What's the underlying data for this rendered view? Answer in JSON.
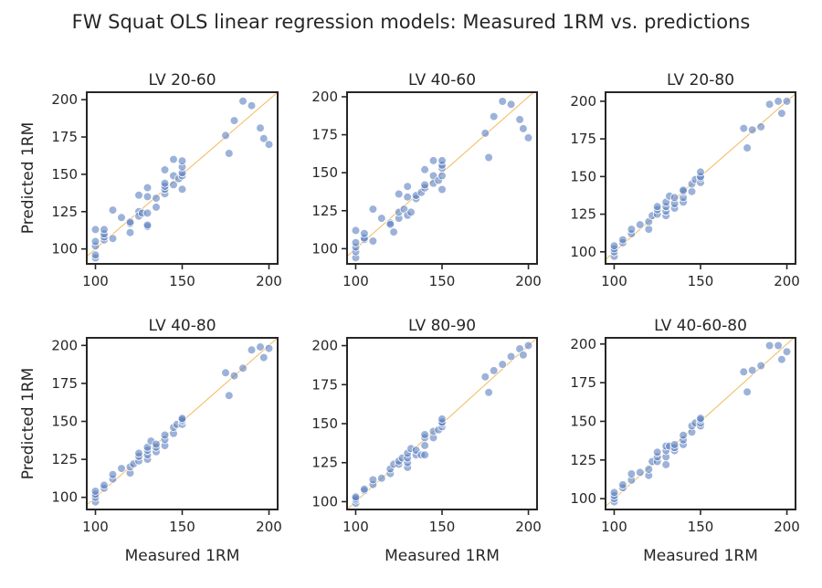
{
  "figure": {
    "title": "FW Squat OLS linear regression models: Measured 1RM vs. predictions",
    "xlabel": "Measured 1RM",
    "ylabel": "Predicted 1RM",
    "point_color": "#5a7fbf",
    "point_edge_color": "#ffffff",
    "identity_line_color": "#f2b24a",
    "axis_color": "#262626"
  },
  "chart_data": [
    {
      "type": "scatter",
      "title": "LV 20-60",
      "xlabel": "",
      "ylabel": "Predicted 1RM",
      "xlim": [
        95,
        205
      ],
      "ylim": [
        90,
        205
      ],
      "xticks": [
        100,
        150,
        200
      ],
      "yticks": [
        100,
        125,
        150,
        175,
        200
      ],
      "identity_line": true,
      "points": [
        [
          100,
          94
        ],
        [
          100,
          96
        ],
        [
          100,
          102
        ],
        [
          100,
          105
        ],
        [
          100,
          113
        ],
        [
          105,
          106
        ],
        [
          105,
          108
        ],
        [
          105,
          110
        ],
        [
          105,
          113
        ],
        [
          110,
          107
        ],
        [
          110,
          126
        ],
        [
          115,
          121
        ],
        [
          120,
          111
        ],
        [
          120,
          117
        ],
        [
          120,
          118
        ],
        [
          125,
          125
        ],
        [
          125,
          136
        ],
        [
          125,
          122
        ],
        [
          127,
          124
        ],
        [
          130,
          115
        ],
        [
          130,
          116
        ],
        [
          130,
          124
        ],
        [
          130,
          135
        ],
        [
          130,
          141
        ],
        [
          135,
          128
        ],
        [
          135,
          134
        ],
        [
          140,
          137
        ],
        [
          140,
          140
        ],
        [
          140,
          142
        ],
        [
          140,
          144
        ],
        [
          140,
          153
        ],
        [
          145,
          143
        ],
        [
          145,
          149
        ],
        [
          145,
          160
        ],
        [
          148,
          147
        ],
        [
          150,
          140
        ],
        [
          150,
          149
        ],
        [
          150,
          151
        ],
        [
          150,
          155
        ],
        [
          150,
          159
        ],
        [
          175,
          176
        ],
        [
          177,
          164
        ],
        [
          180,
          186
        ],
        [
          185,
          199
        ],
        [
          190,
          196
        ],
        [
          195,
          181
        ],
        [
          197,
          174
        ],
        [
          200,
          170
        ]
      ]
    },
    {
      "type": "scatter",
      "title": "LV 40-60",
      "xlabel": "",
      "ylabel": "",
      "xlim": [
        95,
        205
      ],
      "ylim": [
        90,
        203
      ],
      "xticks": [
        100,
        150,
        200
      ],
      "yticks": [
        100,
        125,
        150,
        175,
        200
      ],
      "identity_line": true,
      "points": [
        [
          100,
          94
        ],
        [
          100,
          98
        ],
        [
          100,
          101
        ],
        [
          100,
          104
        ],
        [
          100,
          112
        ],
        [
          105,
          106
        ],
        [
          105,
          107
        ],
        [
          105,
          110
        ],
        [
          110,
          105
        ],
        [
          110,
          126
        ],
        [
          115,
          120
        ],
        [
          120,
          117
        ],
        [
          120,
          116
        ],
        [
          122,
          111
        ],
        [
          125,
          120
        ],
        [
          125,
          124
        ],
        [
          125,
          136
        ],
        [
          128,
          126
        ],
        [
          130,
          122
        ],
        [
          130,
          134
        ],
        [
          130,
          141
        ],
        [
          132,
          124
        ],
        [
          135,
          133
        ],
        [
          135,
          135
        ],
        [
          138,
          137
        ],
        [
          140,
          140
        ],
        [
          140,
          142
        ],
        [
          140,
          152
        ],
        [
          145,
          143
        ],
        [
          145,
          148
        ],
        [
          145,
          158
        ],
        [
          148,
          145
        ],
        [
          150,
          139
        ],
        [
          150,
          148
        ],
        [
          150,
          153
        ],
        [
          150,
          155
        ],
        [
          150,
          158
        ],
        [
          175,
          176
        ],
        [
          177,
          160
        ],
        [
          180,
          187
        ],
        [
          185,
          197
        ],
        [
          190,
          195
        ],
        [
          195,
          185
        ],
        [
          197,
          179
        ],
        [
          200,
          173
        ]
      ]
    },
    {
      "type": "scatter",
      "title": "LV 20-80",
      "xlabel": "",
      "ylabel": "",
      "xlim": [
        95,
        205
      ],
      "ylim": [
        92,
        206
      ],
      "xticks": [
        100,
        150,
        200
      ],
      "yticks": [
        100,
        125,
        150,
        175,
        200
      ],
      "identity_line": true,
      "points": [
        [
          100,
          97
        ],
        [
          100,
          100
        ],
        [
          100,
          102
        ],
        [
          100,
          104
        ],
        [
          105,
          106
        ],
        [
          105,
          108
        ],
        [
          110,
          112
        ],
        [
          110,
          115
        ],
        [
          115,
          118
        ],
        [
          120,
          115
        ],
        [
          120,
          120
        ],
        [
          122,
          124
        ],
        [
          125,
          125
        ],
        [
          125,
          128
        ],
        [
          125,
          130
        ],
        [
          130,
          124
        ],
        [
          130,
          127
        ],
        [
          130,
          130
        ],
        [
          130,
          133
        ],
        [
          132,
          137
        ],
        [
          135,
          129
        ],
        [
          135,
          132
        ],
        [
          135,
          136
        ],
        [
          140,
          133
        ],
        [
          140,
          136
        ],
        [
          140,
          140
        ],
        [
          140,
          141
        ],
        [
          145,
          140
        ],
        [
          145,
          145
        ],
        [
          147,
          148
        ],
        [
          150,
          146
        ],
        [
          150,
          149
        ],
        [
          150,
          150
        ],
        [
          150,
          153
        ],
        [
          175,
          182
        ],
        [
          177,
          169
        ],
        [
          180,
          181
        ],
        [
          185,
          183
        ],
        [
          190,
          198
        ],
        [
          195,
          200
        ],
        [
          197,
          192
        ],
        [
          200,
          200
        ]
      ]
    },
    {
      "type": "scatter",
      "title": "LV 40-80",
      "xlabel": "Measured 1RM",
      "ylabel": "Predicted 1RM",
      "xlim": [
        95,
        205
      ],
      "ylim": [
        92,
        205
      ],
      "xticks": [
        100,
        150,
        200
      ],
      "yticks": [
        100,
        125,
        150,
        175,
        200
      ],
      "identity_line": true,
      "points": [
        [
          100,
          97
        ],
        [
          100,
          100
        ],
        [
          100,
          102
        ],
        [
          100,
          104
        ],
        [
          105,
          106
        ],
        [
          105,
          108
        ],
        [
          110,
          112
        ],
        [
          110,
          115
        ],
        [
          115,
          119
        ],
        [
          120,
          116
        ],
        [
          120,
          120
        ],
        [
          122,
          122
        ],
        [
          125,
          124
        ],
        [
          125,
          127
        ],
        [
          125,
          129
        ],
        [
          130,
          125
        ],
        [
          130,
          128
        ],
        [
          130,
          131
        ],
        [
          130,
          133
        ],
        [
          132,
          137
        ],
        [
          135,
          130
        ],
        [
          135,
          133
        ],
        [
          135,
          135
        ],
        [
          140,
          134
        ],
        [
          140,
          138
        ],
        [
          140,
          141
        ],
        [
          145,
          142
        ],
        [
          145,
          146
        ],
        [
          147,
          148
        ],
        [
          150,
          148
        ],
        [
          150,
          150
        ],
        [
          150,
          151
        ],
        [
          150,
          152
        ],
        [
          175,
          182
        ],
        [
          177,
          167
        ],
        [
          180,
          180
        ],
        [
          185,
          185
        ],
        [
          190,
          197
        ],
        [
          195,
          199
        ],
        [
          197,
          192
        ],
        [
          200,
          198
        ]
      ]
    },
    {
      "type": "scatter",
      "title": "LV 80-90",
      "xlabel": "Measured 1RM",
      "ylabel": "",
      "xlim": [
        95,
        205
      ],
      "ylim": [
        95,
        205
      ],
      "xticks": [
        100,
        150,
        200
      ],
      "yticks": [
        100,
        125,
        150,
        175,
        200
      ],
      "identity_line": true,
      "points": [
        [
          100,
          99
        ],
        [
          100,
          101
        ],
        [
          100,
          102
        ],
        [
          100,
          103
        ],
        [
          105,
          107
        ],
        [
          105,
          108
        ],
        [
          110,
          111
        ],
        [
          110,
          114
        ],
        [
          115,
          115
        ],
        [
          120,
          118
        ],
        [
          120,
          121
        ],
        [
          122,
          124
        ],
        [
          125,
          124
        ],
        [
          125,
          126
        ],
        [
          127,
          128
        ],
        [
          130,
          122
        ],
        [
          130,
          125
        ],
        [
          130,
          128
        ],
        [
          130,
          131
        ],
        [
          132,
          134
        ],
        [
          135,
          130
        ],
        [
          135,
          133
        ],
        [
          138,
          130
        ],
        [
          140,
          130
        ],
        [
          140,
          136
        ],
        [
          140,
          141
        ],
        [
          140,
          143
        ],
        [
          145,
          141
        ],
        [
          145,
          145
        ],
        [
          148,
          146
        ],
        [
          150,
          148
        ],
        [
          150,
          150
        ],
        [
          150,
          151
        ],
        [
          150,
          153
        ],
        [
          175,
          180
        ],
        [
          177,
          170
        ],
        [
          180,
          184
        ],
        [
          185,
          188
        ],
        [
          190,
          193
        ],
        [
          195,
          198
        ],
        [
          197,
          194
        ],
        [
          200,
          200
        ]
      ]
    },
    {
      "type": "scatter",
      "title": "LV 40-60-80",
      "xlabel": "Measured 1RM",
      "ylabel": "",
      "xlim": [
        95,
        205
      ],
      "ylim": [
        93,
        204
      ],
      "xticks": [
        100,
        150,
        200
      ],
      "yticks": [
        100,
        125,
        150,
        175,
        200
      ],
      "identity_line": true,
      "points": [
        [
          100,
          98
        ],
        [
          100,
          100
        ],
        [
          100,
          102
        ],
        [
          100,
          104
        ],
        [
          105,
          107
        ],
        [
          105,
          109
        ],
        [
          110,
          112
        ],
        [
          110,
          116
        ],
        [
          115,
          117
        ],
        [
          120,
          115
        ],
        [
          120,
          119
        ],
        [
          122,
          124
        ],
        [
          125,
          124
        ],
        [
          125,
          127
        ],
        [
          125,
          130
        ],
        [
          130,
          122
        ],
        [
          130,
          127
        ],
        [
          130,
          131
        ],
        [
          130,
          134
        ],
        [
          132,
          134
        ],
        [
          135,
          131
        ],
        [
          135,
          133
        ],
        [
          135,
          135
        ],
        [
          140,
          135
        ],
        [
          140,
          138
        ],
        [
          140,
          141
        ],
        [
          145,
          143
        ],
        [
          145,
          147
        ],
        [
          147,
          149
        ],
        [
          150,
          147
        ],
        [
          150,
          149
        ],
        [
          150,
          151
        ],
        [
          150,
          152
        ],
        [
          175,
          182
        ],
        [
          177,
          169
        ],
        [
          180,
          183
        ],
        [
          185,
          186
        ],
        [
          190,
          199
        ],
        [
          195,
          199
        ],
        [
          197,
          190
        ],
        [
          200,
          195
        ]
      ]
    }
  ]
}
